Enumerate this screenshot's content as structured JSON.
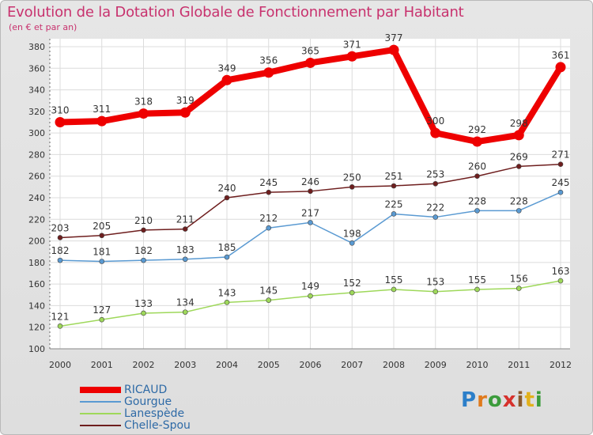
{
  "header": {
    "title": "Evolution de la Dotation Globale de Fonctionnement par Habitant",
    "subtitle": "(en € et par an)"
  },
  "logo": {
    "text": "Proxiti",
    "colors": [
      "#2c7fc9",
      "#e07a1c",
      "#3c9c3c",
      "#d6312c",
      "#8a5a2c",
      "#e2b11c",
      "#3c9c3c"
    ]
  },
  "chart_data": {
    "type": "line",
    "title": "Evolution de la Dotation Globale de Fonctionnement par Habitant",
    "subtitle": "(en € et par an)",
    "xlabel": "",
    "ylabel": "",
    "x": [
      "2000",
      "2001",
      "2002",
      "2003",
      "2004",
      "2005",
      "2006",
      "2007",
      "2008",
      "2009",
      "2010",
      "2011",
      "2012"
    ],
    "ylim": [
      100,
      380
    ],
    "yticks": [
      100,
      120,
      140,
      160,
      180,
      200,
      220,
      240,
      260,
      280,
      300,
      320,
      340,
      360,
      380
    ],
    "grid": true,
    "legend_position": "bottom-left",
    "series": [
      {
        "name": "RICAUD",
        "color": "#ee0000",
        "values": [
          310,
          311,
          318,
          319,
          349,
          356,
          365,
          371,
          377,
          300,
          292,
          298,
          361
        ]
      },
      {
        "name": "Gourgue",
        "color": "#5a9ad2",
        "values": [
          182,
          181,
          182,
          183,
          185,
          212,
          217,
          198,
          225,
          222,
          228,
          228,
          245
        ]
      },
      {
        "name": "Lanespède",
        "color": "#9ed85a",
        "values": [
          121,
          127,
          133,
          134,
          143,
          145,
          149,
          152,
          155,
          153,
          155,
          156,
          163
        ]
      },
      {
        "name": "Chelle-Spou",
        "color": "#6e1e1e",
        "values": [
          203,
          205,
          210,
          211,
          240,
          245,
          246,
          250,
          251,
          253,
          260,
          269,
          271
        ]
      }
    ]
  }
}
